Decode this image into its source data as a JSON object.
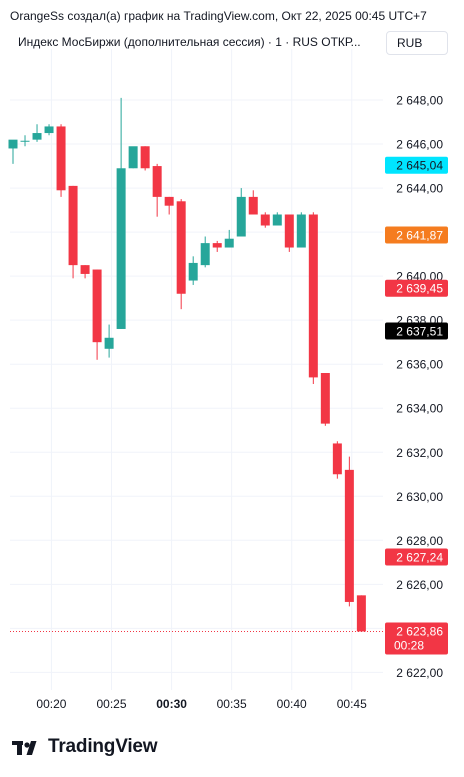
{
  "header": {
    "caption": "OrangeSs создал(а) график на TradingView.com, Окт 22, 2025 00:45 UTC+7",
    "legend": "Индекс МосБиржи (дополнительная сессия) · 1 · RUS  ОТКР...",
    "currency": "RUB"
  },
  "footer": {
    "brand": "TradingView"
  },
  "colors": {
    "up": "#26a69a",
    "down": "#f23645",
    "cyan": "#00e5ff",
    "orange": "#f57c1f",
    "black": "#000000",
    "grid": "#f0f3fa"
  },
  "chart_data": {
    "type": "candlestick",
    "y_ticks": [
      "2 648,00",
      "2 646,00",
      "2 644,00",
      "2 642,00",
      "2 640,00",
      "2 638,00",
      "2 636,00",
      "2 634,00",
      "2 632,00",
      "2 630,00",
      "2 628,00",
      "2 626,00",
      "2 624,00",
      "2 622,00"
    ],
    "y_tick_values": [
      2648,
      2646,
      2644,
      2642,
      2640,
      2638,
      2636,
      2634,
      2632,
      2630,
      2628,
      2626,
      2624,
      2622
    ],
    "x_ticks": [
      {
        "label": "00:20",
        "minute": 20
      },
      {
        "label": "00:25",
        "minute": 25
      },
      {
        "label": "00:30",
        "minute": 30,
        "bold": true
      },
      {
        "label": "00:35",
        "minute": 35
      },
      {
        "label": "00:40",
        "minute": 40
      },
      {
        "label": "00:45",
        "minute": 45
      }
    ],
    "ylim": [
      2621.2,
      2650.0
    ],
    "xlim": [
      16.55,
      47.6
    ],
    "grid": true,
    "candles": [
      {
        "t": 16.8,
        "o": 2645.8,
        "h": 2646.1,
        "l": 2645.1,
        "c": 2646.2
      },
      {
        "t": 17.8,
        "o": 2646.15,
        "h": 2646.4,
        "l": 2645.9,
        "c": 2646.15
      },
      {
        "t": 18.8,
        "o": 2646.2,
        "h": 2646.9,
        "l": 2646.1,
        "c": 2646.5
      },
      {
        "t": 19.8,
        "o": 2646.5,
        "h": 2646.9,
        "l": 2646.4,
        "c": 2646.8
      },
      {
        "t": 20.8,
        "o": 2646.8,
        "h": 2646.9,
        "l": 2643.6,
        "c": 2643.9
      },
      {
        "t": 21.8,
        "o": 2644.1,
        "h": 2644.1,
        "l": 2639.9,
        "c": 2640.5
      },
      {
        "t": 22.8,
        "o": 2640.5,
        "h": 2640.5,
        "l": 2639.9,
        "c": 2640.1
      },
      {
        "t": 23.8,
        "o": 2640.3,
        "h": 2640.3,
        "l": 2636.2,
        "c": 2637.0
      },
      {
        "t": 24.8,
        "o": 2636.7,
        "h": 2637.8,
        "l": 2636.3,
        "c": 2637.2
      },
      {
        "t": 25.8,
        "o": 2637.6,
        "h": 2648.1,
        "l": 2637.6,
        "c": 2644.9
      },
      {
        "t": 26.8,
        "o": 2644.9,
        "h": 2645.8,
        "l": 2644.9,
        "c": 2645.9
      },
      {
        "t": 27.8,
        "o": 2645.9,
        "h": 2645.9,
        "l": 2644.8,
        "c": 2644.9
      },
      {
        "t": 28.8,
        "o": 2645.0,
        "h": 2645.1,
        "l": 2642.7,
        "c": 2643.6
      },
      {
        "t": 29.8,
        "o": 2643.6,
        "h": 2643.6,
        "l": 2642.8,
        "c": 2643.2
      },
      {
        "t": 30.8,
        "o": 2643.4,
        "h": 2643.5,
        "l": 2638.5,
        "c": 2639.2
      },
      {
        "t": 31.8,
        "o": 2639.8,
        "h": 2640.9,
        "l": 2639.6,
        "c": 2640.6
      },
      {
        "t": 32.8,
        "o": 2640.5,
        "h": 2641.8,
        "l": 2640.4,
        "c": 2641.5
      },
      {
        "t": 33.8,
        "o": 2641.5,
        "h": 2641.6,
        "l": 2641.1,
        "c": 2641.3
      },
      {
        "t": 34.8,
        "o": 2641.3,
        "h": 2642.1,
        "l": 2641.3,
        "c": 2641.7
      },
      {
        "t": 35.8,
        "o": 2641.8,
        "h": 2644.0,
        "l": 2641.8,
        "c": 2643.6
      },
      {
        "t": 36.8,
        "o": 2643.6,
        "h": 2643.9,
        "l": 2642.9,
        "c": 2642.8
      },
      {
        "t": 37.8,
        "o": 2642.8,
        "h": 2642.9,
        "l": 2642.2,
        "c": 2642.3
      },
      {
        "t": 38.8,
        "o": 2642.3,
        "h": 2642.9,
        "l": 2642.3,
        "c": 2642.8
      },
      {
        "t": 39.8,
        "o": 2642.8,
        "h": 2642.8,
        "l": 2641.1,
        "c": 2641.3
      },
      {
        "t": 40.8,
        "o": 2641.3,
        "h": 2642.9,
        "l": 2641.3,
        "c": 2642.8
      },
      {
        "t": 41.8,
        "o": 2642.8,
        "h": 2642.9,
        "l": 2635.1,
        "c": 2635.4
      },
      {
        "t": 42.8,
        "o": 2635.6,
        "h": 2635.6,
        "l": 2633.2,
        "c": 2633.3
      },
      {
        "t": 43.8,
        "o": 2632.4,
        "h": 2632.5,
        "l": 2630.8,
        "c": 2631.0
      },
      {
        "t": 44.8,
        "o": 2631.2,
        "h": 2631.8,
        "l": 2625.0,
        "c": 2625.2
      },
      {
        "t": 45.8,
        "o": 2625.5,
        "h": 2625.5,
        "l": 2623.9,
        "c": 2623.86
      }
    ],
    "price_labels": [
      {
        "text": "2 645,04",
        "value": 2645.04,
        "color": "cyan"
      },
      {
        "text": "2 641,87",
        "value": 2641.87,
        "color": "orange"
      },
      {
        "text": "2 639,45",
        "value": 2639.45,
        "color": "down"
      },
      {
        "text": "2 637,51",
        "value": 2637.51,
        "color": "black"
      },
      {
        "text": "2 627,24",
        "value": 2627.24,
        "color": "down"
      }
    ],
    "last_price": {
      "text": "2 623,86",
      "value": 2623.86,
      "countdown": "00:28"
    }
  }
}
